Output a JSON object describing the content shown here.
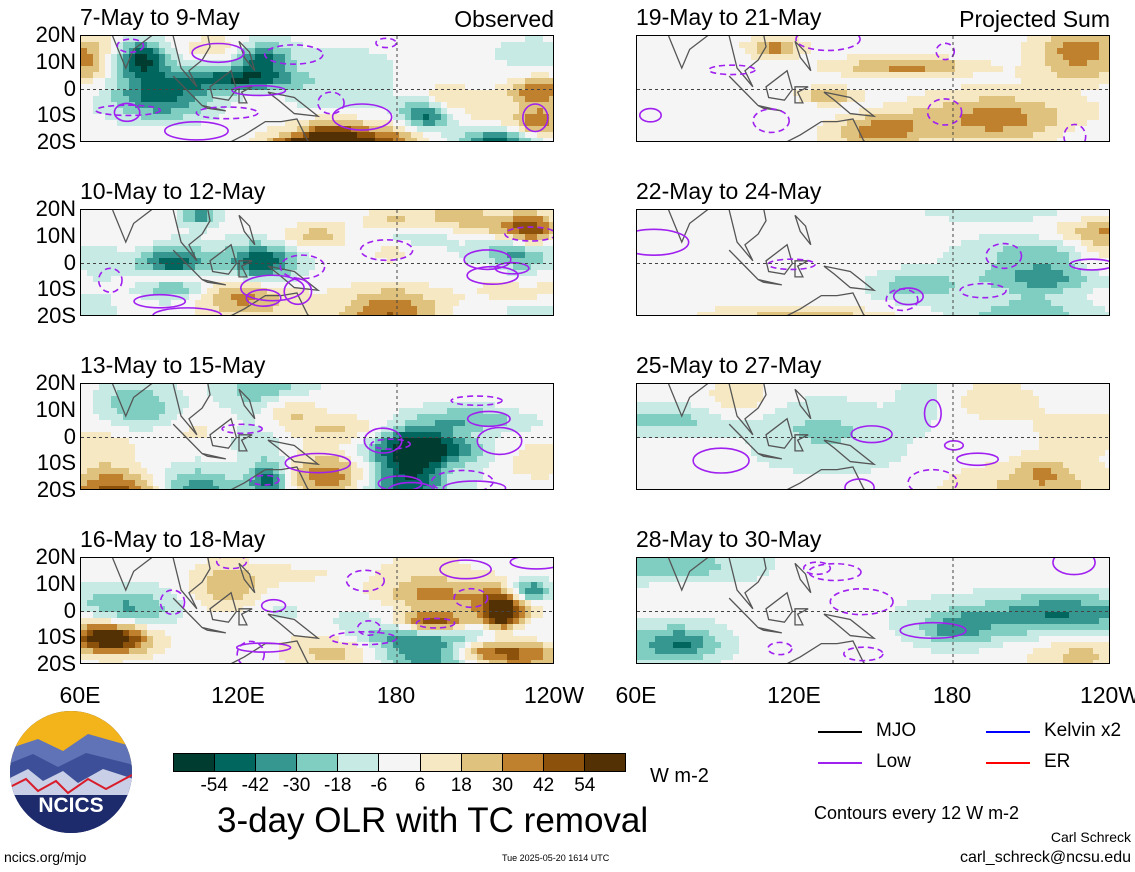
{
  "figure": {
    "main_title": "3-day OLR with TC removal",
    "units": "W m-2",
    "contour_note": "Contours every 12 W m-2",
    "author": "Carl Schreck",
    "email": "carl_schreck@ncsu.edu",
    "site": "ncics.org/mjo",
    "timestamp": "Tue 2025-05-20 1614 UTC",
    "logo_text": "NCICS"
  },
  "column_labels": {
    "left": "Observed",
    "right": "Projected Sum"
  },
  "colorbar": {
    "ticks": [
      "-54",
      "-42",
      "-30",
      "-18",
      "-6",
      "6",
      "18",
      "30",
      "42",
      "54"
    ],
    "colors": [
      "#003c30",
      "#01665e",
      "#35978f",
      "#80cdc1",
      "#c7eae5",
      "#f5f5f5",
      "#f6e8c3",
      "#dfc27d",
      "#bf812d",
      "#8c510a",
      "#543005"
    ]
  },
  "legend": [
    {
      "label": "MJO",
      "color": "#000000"
    },
    {
      "label": "Kelvin x2",
      "color": "#0000ff"
    },
    {
      "label": "Low",
      "color": "#a020f0"
    },
    {
      "label": "ER",
      "color": "#ff0000"
    }
  ],
  "chart_data": {
    "type": "heatmap",
    "title": "3-day OLR with TC removal",
    "xlabel": "",
    "ylabel": "",
    "x_ticks": [
      "60E",
      "120E",
      "180",
      "120W"
    ],
    "y_ticks": [
      "20N",
      "10N",
      "0",
      "10S",
      "20S"
    ],
    "xlim_deg_east": [
      60,
      240
    ],
    "ylim_deg_lat": [
      -20,
      20
    ],
    "colorbar_levels": [
      -54,
      -42,
      -30,
      -18,
      -6,
      6,
      18,
      30,
      42,
      54
    ],
    "panels": [
      {
        "title": "7-May to 9-May",
        "column": "Observed"
      },
      {
        "title": "10-May to 12-May",
        "column": "Observed"
      },
      {
        "title": "13-May to 15-May",
        "column": "Observed"
      },
      {
        "title": "16-May to 18-May",
        "column": "Observed"
      },
      {
        "title": "19-May to 21-May",
        "column": "Projected Sum"
      },
      {
        "title": "22-May to 24-May",
        "column": "Projected Sum"
      },
      {
        "title": "25-May to 27-May",
        "column": "Projected Sum"
      },
      {
        "title": "28-May to 30-May",
        "column": "Projected Sum"
      }
    ]
  }
}
